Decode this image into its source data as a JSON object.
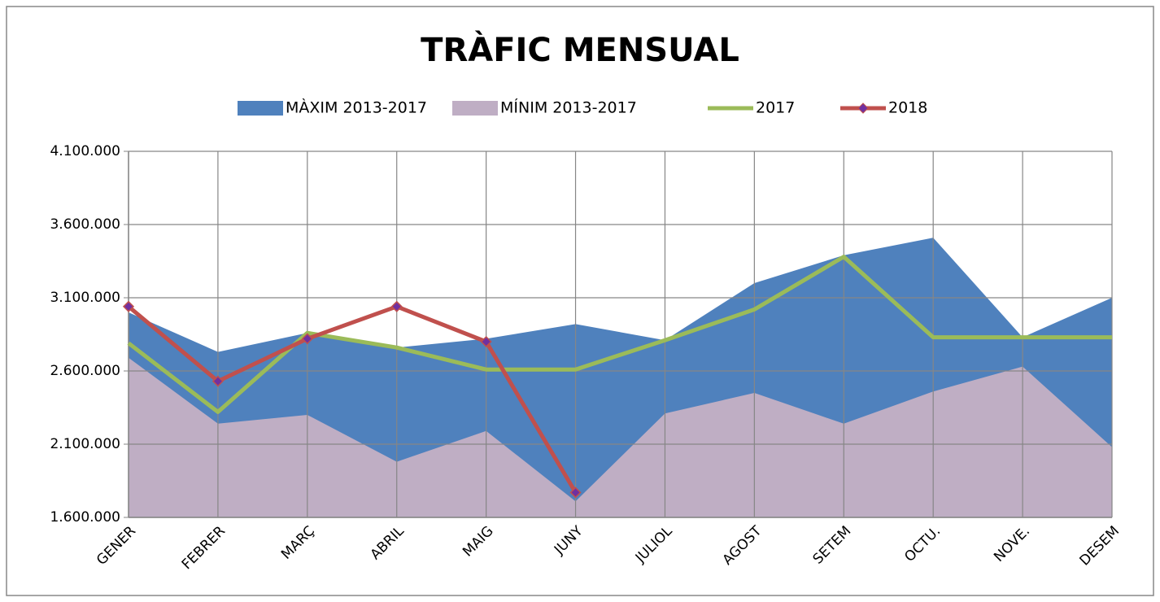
{
  "chart_data": {
    "type": "area-line",
    "title": "TRÀFIC MENSUAL",
    "categories": [
      "GENER",
      "FEBRER",
      "MARÇ",
      "ABRIL",
      "MAIG",
      "JUNY",
      "JULIOL",
      "AGOST",
      "SETEM",
      "OCTU.",
      "NOVE.",
      "DESEM"
    ],
    "series": [
      {
        "name": "MÀXIM 2013-2017",
        "kind": "area",
        "color": "#4f81bd",
        "values": [
          3000000,
          2730000,
          2860000,
          2760000,
          2820000,
          2920000,
          2810000,
          3200000,
          3390000,
          3510000,
          2830000,
          3100000
        ]
      },
      {
        "name": "MÍNIM 2013-2017",
        "kind": "area",
        "color": "#bfaec4",
        "values": [
          2690000,
          2240000,
          2300000,
          1980000,
          2190000,
          1710000,
          2310000,
          2450000,
          2240000,
          2460000,
          2630000,
          2080000
        ]
      },
      {
        "name": "2017",
        "kind": "line",
        "color": "#9bbb59",
        "values": [
          2790000,
          2320000,
          2860000,
          2760000,
          2610000,
          2610000,
          2810000,
          3020000,
          3380000,
          2830000,
          2830000,
          2830000
        ]
      },
      {
        "name": "2018",
        "kind": "line",
        "color": "#c0504d",
        "marker": "diamond",
        "marker_color": "#7030a0",
        "values": [
          3040000,
          2530000,
          2820000,
          3040000,
          2800000,
          1770000,
          null,
          null,
          null,
          null,
          null,
          null
        ]
      }
    ],
    "ylim": [
      1600000,
      4100000
    ],
    "yticks": [
      {
        "value": 1600000,
        "label": "1.600.000"
      },
      {
        "value": 2100000,
        "label": "2.100.000"
      },
      {
        "value": 2600000,
        "label": "2.600.000"
      },
      {
        "value": 3100000,
        "label": "3.100.000"
      },
      {
        "value": 3600000,
        "label": "3.600.000"
      },
      {
        "value": 4100000,
        "label": "4.100.000"
      }
    ],
    "grid": true,
    "legend": "top"
  }
}
